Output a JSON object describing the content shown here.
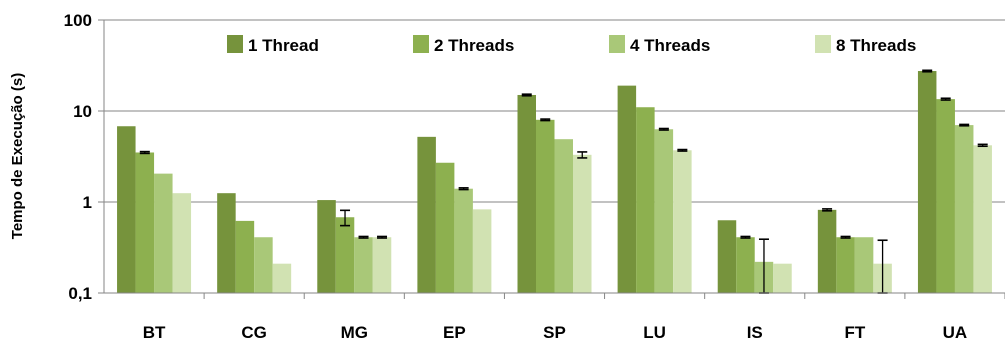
{
  "chart_data": {
    "type": "bar",
    "yscale": "log",
    "ylabel": "Tempo de Execução  (s)",
    "ylim": [
      0.1,
      100
    ],
    "yticks": [
      {
        "value": 100,
        "label": "100"
      },
      {
        "value": 10,
        "label": "10"
      },
      {
        "value": 1,
        "label": "1"
      },
      {
        "value": 0.1,
        "label": "0,1"
      }
    ],
    "grid": true,
    "legend_position": "top",
    "categories": [
      "BT",
      "CG",
      "MG",
      "EP",
      "SP",
      "LU",
      "IS",
      "FT",
      "UA"
    ],
    "series": [
      {
        "name": "1 Thread",
        "color": "#76933C",
        "values": [
          6.8,
          1.25,
          1.05,
          5.2,
          15.0,
          19.0,
          0.63,
          0.82,
          27.5
        ],
        "errors": [
          0,
          0,
          0,
          0,
          0.3,
          0,
          0,
          0.02,
          0.5
        ]
      },
      {
        "name": "2 Threads",
        "color": "#8DB04F",
        "values": [
          3.5,
          0.62,
          0.68,
          2.7,
          8.0,
          11.0,
          0.41,
          0.41,
          13.5
        ],
        "errors": [
          0.08,
          0,
          0.13,
          0,
          0.15,
          0,
          0.008,
          0.008,
          0.3
        ]
      },
      {
        "name": "4 Threads",
        "color": "#A9C878",
        "values": [
          2.05,
          0.41,
          0.41,
          1.4,
          4.9,
          6.3,
          0.22,
          0.41,
          7.0
        ],
        "errors": [
          0,
          0,
          0.008,
          0.03,
          0,
          0.12,
          0.17,
          0,
          0.12
        ]
      },
      {
        "name": "8 Threads",
        "color": "#D1E2B2",
        "values": [
          1.25,
          0.21,
          0.41,
          0.83,
          3.3,
          3.7,
          0.21,
          0.21,
          4.2
        ],
        "errors": [
          0,
          0,
          0.008,
          0,
          0.25,
          0.07,
          0,
          0.17,
          0.1
        ]
      }
    ]
  }
}
